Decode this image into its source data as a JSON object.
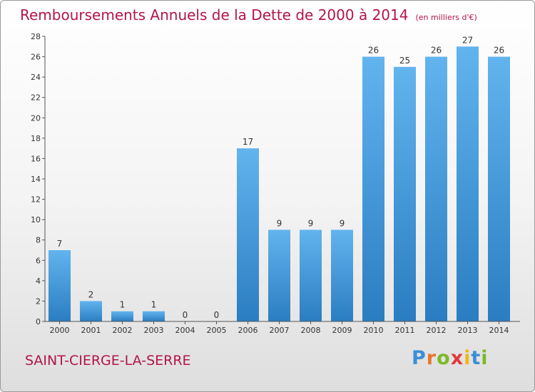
{
  "title": "Remboursements Annuels de la Dette de 2000 à 2014",
  "subtitle": "(en milliers d'€)",
  "commune": "SAINT-CIERGE-LA-SERRE",
  "logo": {
    "letters": [
      "P",
      "r",
      "o",
      "x",
      "i",
      "t",
      "i"
    ],
    "colors": [
      "#3a8fd8",
      "#e8762d",
      "#7cb928",
      "#e03a3a",
      "#f2b51c",
      "#3a8fd8",
      "#7cb928"
    ]
  },
  "colors": {
    "bar_top": "#62b4ee",
    "bar_bottom": "#2a7dc1",
    "text": "#b2144c"
  },
  "chart_data": {
    "type": "bar",
    "categories": [
      "2000",
      "2001",
      "2002",
      "2003",
      "2004",
      "2005",
      "2006",
      "2007",
      "2008",
      "2009",
      "2010",
      "2011",
      "2012",
      "2013",
      "2014"
    ],
    "values": [
      7,
      2,
      1,
      1,
      0,
      0,
      17,
      9,
      9,
      9,
      26,
      25,
      26,
      27,
      26
    ],
    "data_labels": [
      "7",
      "2",
      "1",
      "1",
      "0",
      "0",
      "17",
      "9",
      "9",
      "9",
      "26",
      "25",
      "26",
      "27",
      "26"
    ],
    "yticks": [
      "0",
      "2",
      "4",
      "6",
      "8",
      "10",
      "12",
      "14",
      "16",
      "18",
      "20",
      "22",
      "24",
      "26",
      "28"
    ],
    "ylim": [
      0,
      28
    ],
    "grid": false,
    "legend": "none"
  }
}
